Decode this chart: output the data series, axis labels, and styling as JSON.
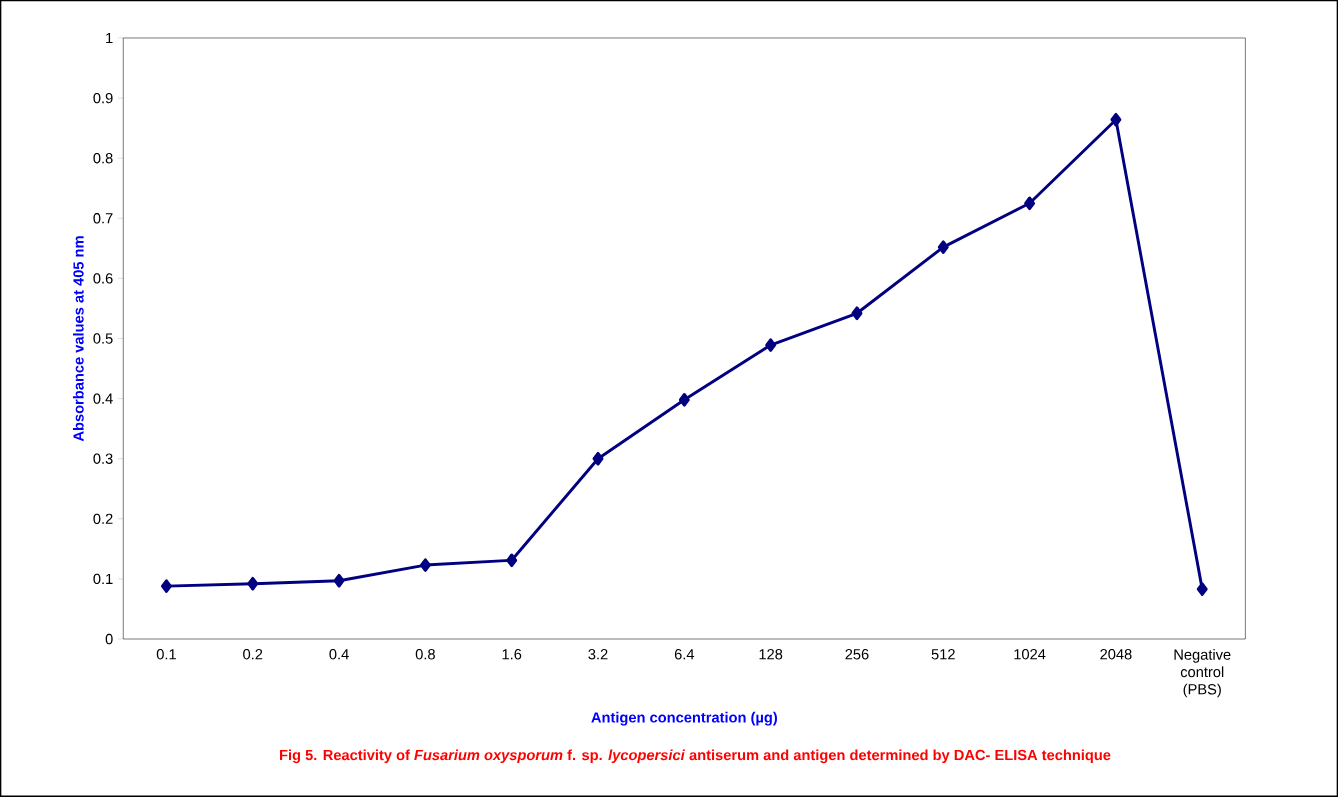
{
  "chart_data": {
    "type": "line",
    "xlabel": "Antigen concentration (µg)",
    "ylabel": "Absorbance values at 405 nm",
    "categories": [
      "0.1",
      "0.2",
      "0.4",
      "0.8",
      "1.6",
      "3.2",
      "6.4",
      "128",
      "256",
      "512",
      "1024",
      "2048",
      "Negative control (PBS)"
    ],
    "series": [
      {
        "color": "#000080",
        "values": [
          0.088,
          0.092,
          0.097,
          0.123,
          0.131,
          0.3,
          0.398,
          0.489,
          0.542,
          0.652,
          0.725,
          0.864,
          0.083
        ]
      }
    ],
    "ylim": [
      0,
      1
    ],
    "yticks": [
      0,
      0.1,
      0.2,
      0.3,
      0.4,
      0.5,
      0.6,
      0.7,
      0.8,
      0.9,
      1
    ],
    "marker": "diamond",
    "line_style": "solid",
    "annotations": [
      "Fig 5.  Reactivity of *Fusarium oxysporum*  f. sp. *lycopersici* antiserum and  antigen determined by DAC-  ELISA technique"
    ]
  }
}
